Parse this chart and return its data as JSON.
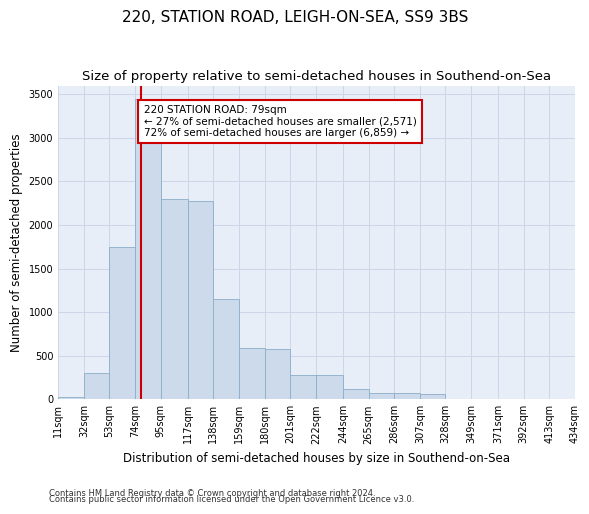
{
  "title": "220, STATION ROAD, LEIGH-ON-SEA, SS9 3BS",
  "subtitle": "Size of property relative to semi-detached houses in Southend-on-Sea",
  "xlabel": "Distribution of semi-detached houses by size in Southend-on-Sea",
  "ylabel": "Number of semi-detached properties",
  "footnote1": "Contains HM Land Registry data © Crown copyright and database right 2024.",
  "footnote2": "Contains public sector information licensed under the Open Government Licence v3.0.",
  "bar_color": "#cddaeb",
  "bar_edgecolor": "#8aaec8",
  "grid_color": "#ccd6e8",
  "vline_color": "#cc0000",
  "annotation_box_edgecolor": "#cc0000",
  "property_sqm": 79,
  "property_label": "220 STATION ROAD: 79sqm",
  "pct_smaller": 27,
  "count_smaller": 2571,
  "pct_larger": 72,
  "count_larger": 6859,
  "bin_edges": [
    11,
    32,
    53,
    74,
    95,
    117,
    138,
    159,
    180,
    201,
    222,
    244,
    265,
    286,
    307,
    328,
    349,
    371,
    392,
    413,
    434
  ],
  "bin_labels": [
    "11sqm",
    "32sqm",
    "53sqm",
    "74sqm",
    "95sqm",
    "117sqm",
    "138sqm",
    "159sqm",
    "180sqm",
    "201sqm",
    "222sqm",
    "244sqm",
    "265sqm",
    "286sqm",
    "307sqm",
    "328sqm",
    "349sqm",
    "371sqm",
    "392sqm",
    "413sqm",
    "434sqm"
  ],
  "bar_heights": [
    30,
    300,
    1750,
    3450,
    2300,
    2280,
    1150,
    590,
    580,
    280,
    275,
    120,
    75,
    70,
    65,
    0,
    0,
    0,
    0,
    0
  ],
  "ylim": [
    0,
    3600
  ],
  "yticks": [
    0,
    500,
    1000,
    1500,
    2000,
    2500,
    3000,
    3500
  ],
  "background_color": "#e8eef8",
  "fig_background": "#ffffff",
  "title_fontsize": 11,
  "subtitle_fontsize": 9.5,
  "axis_fontsize": 8.5,
  "tick_fontsize": 7,
  "footnote_fontsize": 6
}
